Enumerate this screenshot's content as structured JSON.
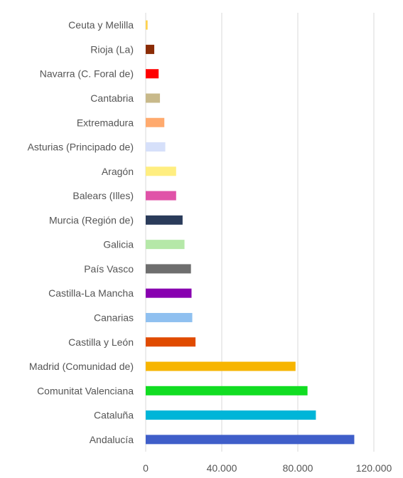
{
  "chart_data": {
    "type": "bar",
    "orientation": "horizontal",
    "title": "",
    "xlabel": "",
    "ylabel": "",
    "xlim": [
      0,
      120000
    ],
    "x_ticks": [
      0,
      40000,
      80000,
      120000
    ],
    "x_tick_labels": [
      "0",
      "40.000",
      "80.000",
      "120.000"
    ],
    "grid": "vertical",
    "legend": "none",
    "categories": [
      "Ceuta y Melilla",
      "Rioja (La)",
      "Navarra (C. Foral de)",
      "Cantabria",
      "Extremadura",
      "Asturias (Principado de)",
      "Aragón",
      "Balears (Illes)",
      "Murcia (Región de)",
      "Galicia",
      "País Vasco",
      "Castilla-La Mancha",
      "Canarias",
      "Castilla y León",
      "Madrid (Comunidad de)",
      "Comunitat Valenciana",
      "Cataluña",
      "Andalucía"
    ],
    "values": [
      1000,
      4500,
      6800,
      7500,
      9800,
      10300,
      16000,
      16000,
      19400,
      20400,
      23800,
      24100,
      24500,
      26200,
      78800,
      85100,
      89500,
      109700
    ],
    "colors": [
      "#ffd24d",
      "#8b2c05",
      "#ff0000",
      "#c8b98a",
      "#ffaa6e",
      "#d6e0fa",
      "#ffee80",
      "#e052a8",
      "#2a3b5a",
      "#b5e8a8",
      "#6e6e6e",
      "#8800b0",
      "#8fc0f0",
      "#e04b00",
      "#f7b500",
      "#11dd22",
      "#00b5d8",
      "#3f5ec9"
    ]
  }
}
